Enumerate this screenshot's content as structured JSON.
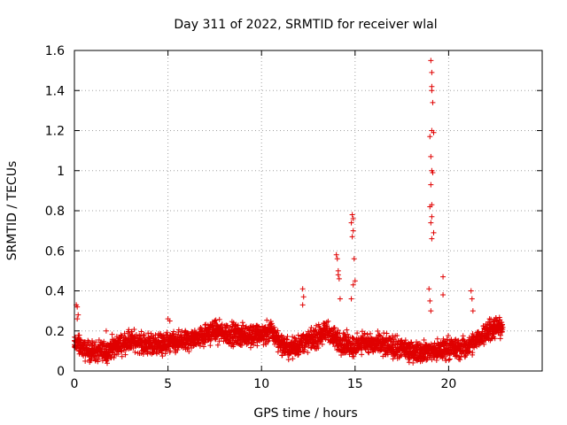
{
  "chart_data": {
    "type": "scatter",
    "title": "Day 311 of 2022, SRMTID for receiver wlal",
    "xlabel": "GPS time / hours",
    "ylabel": "SRMTID / TECUs",
    "xlim": [
      0,
      25
    ],
    "ylim": [
      0,
      1.6
    ],
    "x_ticks": [
      0,
      5,
      10,
      15,
      20
    ],
    "x_tick_labels": [
      "0",
      "5",
      "10",
      "15",
      "20"
    ],
    "y_ticks": [
      0,
      0.2,
      0.4,
      0.6,
      0.8,
      1.0,
      1.2,
      1.4,
      1.6
    ],
    "y_tick_labels": [
      "0",
      "0.2",
      "0.4",
      "0.6",
      "0.8",
      "1",
      "1.2",
      "1.4",
      "1.6"
    ],
    "grid": true,
    "marker": "+",
    "color": "#e00000",
    "baseline_profile": {
      "hours": [
        0,
        0.2,
        0.5,
        1,
        1.6,
        2,
        3,
        4,
        5,
        5.5,
        6,
        7,
        7.5,
        8,
        9,
        10,
        10.5,
        11,
        11.5,
        12,
        13,
        13.5,
        14,
        14.5,
        15,
        15.5,
        16,
        17,
        18,
        18.5,
        19,
        19.5,
        20,
        20.5,
        21,
        21.5,
        22,
        22.5,
        22.9
      ],
      "values": [
        0.13,
        0.14,
        0.1,
        0.1,
        0.09,
        0.12,
        0.15,
        0.13,
        0.14,
        0.14,
        0.15,
        0.18,
        0.2,
        0.19,
        0.18,
        0.18,
        0.2,
        0.14,
        0.11,
        0.13,
        0.17,
        0.2,
        0.15,
        0.14,
        0.12,
        0.15,
        0.13,
        0.12,
        0.1,
        0.1,
        0.1,
        0.1,
        0.12,
        0.11,
        0.12,
        0.15,
        0.2,
        0.22,
        0.22
      ]
    },
    "notable_points": {
      "x": [
        0.1,
        0.15,
        0.2,
        0.15,
        1.7,
        5.0,
        5.1,
        12.2,
        12.25,
        12.2,
        14.0,
        14.05,
        14.1,
        14.1,
        14.15,
        14.2,
        14.85,
        14.9,
        14.8,
        14.9,
        14.85,
        14.95,
        15.0,
        14.9,
        14.8,
        18.95,
        19.0,
        19.05,
        19.05,
        19.1,
        19.1,
        19.1,
        19.15,
        19.1,
        19.2,
        19.0,
        19.05,
        19.1,
        19.15,
        19.05,
        19.1,
        19.0,
        19.1,
        19.05,
        19.2,
        19.1,
        19.7,
        19.7,
        21.2,
        21.25,
        21.3
      ],
      "y": [
        0.33,
        0.32,
        0.28,
        0.26,
        0.2,
        0.26,
        0.25,
        0.41,
        0.37,
        0.33,
        0.58,
        0.56,
        0.5,
        0.48,
        0.46,
        0.36,
        0.78,
        0.76,
        0.74,
        0.7,
        0.67,
        0.56,
        0.45,
        0.43,
        0.36,
        0.41,
        0.35,
        0.3,
        1.55,
        1.49,
        1.42,
        1.4,
        1.34,
        1.2,
        1.19,
        1.17,
        1.07,
        1.0,
        0.99,
        0.93,
        0.83,
        0.82,
        0.77,
        0.74,
        0.69,
        0.66,
        0.47,
        0.38,
        0.4,
        0.36,
        0.3
      ]
    }
  }
}
